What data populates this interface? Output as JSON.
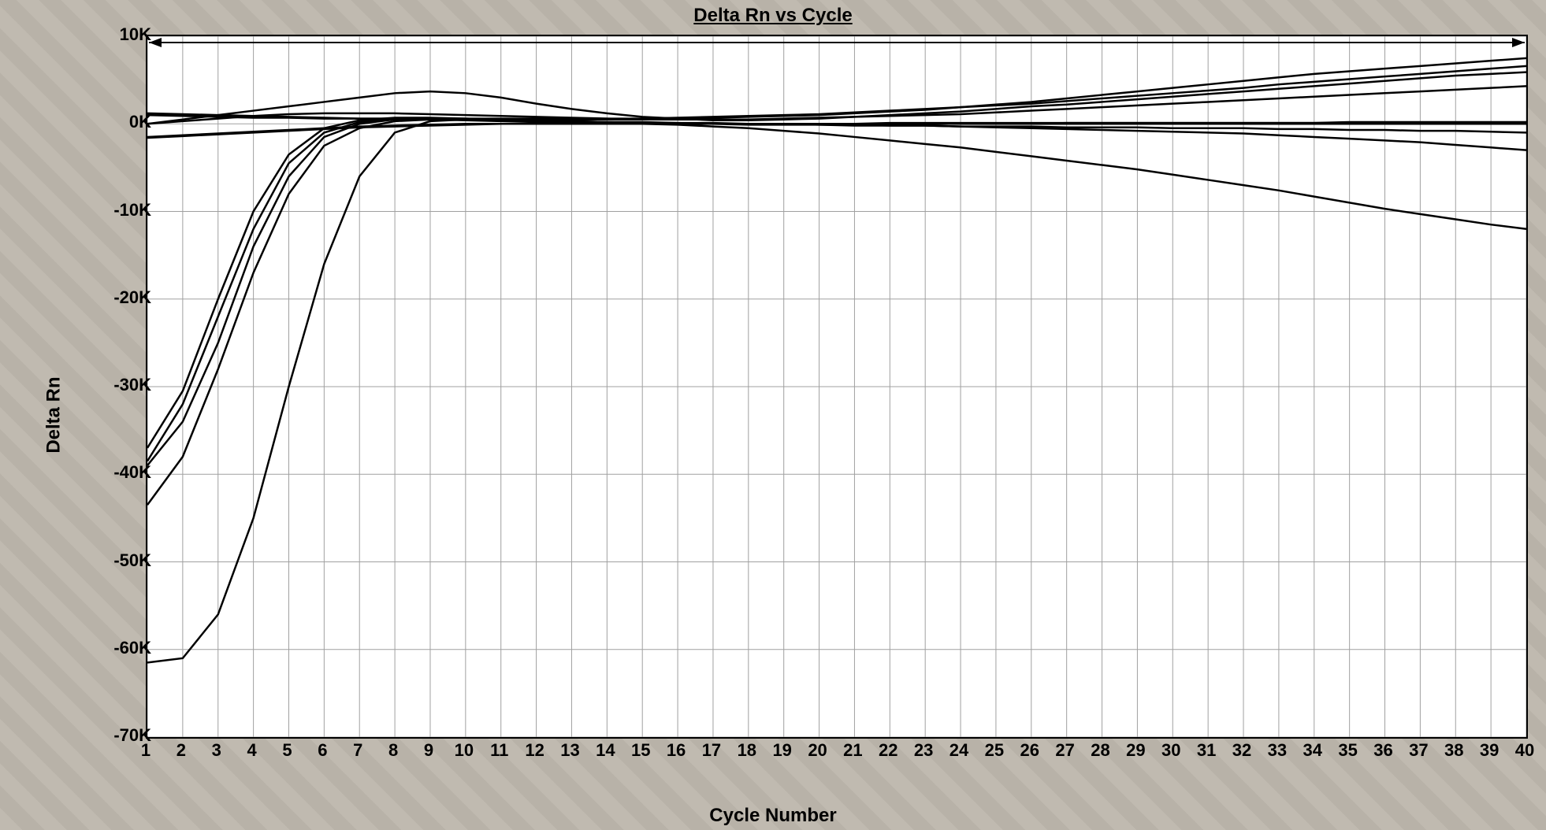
{
  "chart": {
    "type": "line",
    "title": "Delta Rn vs Cycle",
    "xlabel": "Cycle Number",
    "ylabel": "Delta Rn",
    "title_fontsize": 24,
    "label_fontsize": 24,
    "tick_fontsize": 22,
    "background_color": "#ffffff",
    "outer_background": "#b8b0a8",
    "grid_color": "#a0a0a0",
    "border_color": "#000000",
    "line_color": "#000000",
    "line_width": 2.5,
    "xlim": [
      1,
      40
    ],
    "ylim": [
      -70,
      10
    ],
    "xtick_step": 1,
    "ytick_step": 10,
    "ytick_suffix": "K",
    "xticks": [
      1,
      2,
      3,
      4,
      5,
      6,
      7,
      8,
      9,
      10,
      11,
      12,
      13,
      14,
      15,
      16,
      17,
      18,
      19,
      20,
      21,
      22,
      23,
      24,
      25,
      26,
      27,
      28,
      29,
      30,
      31,
      32,
      33,
      34,
      35,
      36,
      37,
      38,
      39,
      40
    ],
    "yticks": [
      10,
      0,
      -10,
      -20,
      -30,
      -40,
      -50,
      -60,
      -70
    ],
    "series": [
      {
        "name": "s1",
        "values": [
          1.2,
          1.1,
          1.0,
          0.9,
          0.8,
          0.7,
          0.6,
          0.6,
          0.5,
          0.5,
          0.5,
          0.5,
          0.5,
          0.5,
          0.5,
          0.6,
          0.7,
          0.8,
          0.9,
          1.0,
          1.2,
          1.4,
          1.6,
          1.9,
          2.2,
          2.5,
          2.9,
          3.3,
          3.7,
          4.1,
          4.5,
          4.9,
          5.3,
          5.7,
          6.0,
          6.3,
          6.6,
          6.9,
          7.2,
          7.5
        ]
      },
      {
        "name": "s2",
        "values": [
          1.0,
          0.9,
          0.8,
          0.7,
          0.7,
          0.6,
          0.6,
          0.6,
          0.6,
          0.6,
          0.6,
          0.6,
          0.6,
          0.6,
          0.6,
          0.7,
          0.8,
          0.9,
          1.0,
          1.1,
          1.3,
          1.5,
          1.7,
          1.9,
          2.1,
          2.3,
          2.6,
          2.9,
          3.2,
          3.5,
          3.8,
          4.1,
          4.5,
          4.8,
          5.1,
          5.4,
          5.7,
          6.0,
          6.3,
          6.6
        ]
      },
      {
        "name": "s3",
        "values": [
          0.0,
          0.5,
          1.0,
          1.5,
          2.0,
          2.5,
          3.0,
          3.5,
          3.7,
          3.5,
          3.0,
          2.3,
          1.7,
          1.2,
          0.8,
          0.6,
          0.4,
          0.4,
          0.5,
          0.6,
          0.8,
          1.0,
          1.2,
          1.4,
          1.7,
          2.0,
          2.2,
          2.5,
          2.8,
          3.1,
          3.4,
          3.7,
          4.0,
          4.3,
          4.6,
          4.9,
          5.2,
          5.5,
          5.7,
          5.9
        ]
      },
      {
        "name": "s4",
        "values": [
          0.0,
          0.3,
          0.6,
          0.9,
          1.1,
          1.2,
          1.2,
          1.2,
          1.1,
          1.0,
          0.9,
          0.8,
          0.7,
          0.6,
          0.5,
          0.5,
          0.5,
          0.5,
          0.6,
          0.7,
          0.8,
          0.9,
          1.0,
          1.1,
          1.3,
          1.5,
          1.7,
          1.9,
          2.1,
          2.3,
          2.5,
          2.7,
          2.9,
          3.1,
          3.3,
          3.5,
          3.7,
          3.9,
          4.1,
          4.3
        ]
      },
      {
        "name": "s5",
        "values": [
          -1.5,
          -1.3,
          -1.1,
          -0.9,
          -0.7,
          -0.5,
          -0.3,
          -0.2,
          -0.1,
          0.0,
          0.0,
          0.0,
          0.0,
          0.0,
          0.0,
          0.0,
          0.0,
          0.0,
          0.0,
          0.0,
          0.0,
          0.0,
          0.0,
          0.0,
          0.0,
          0.0,
          0.1,
          0.1,
          0.1,
          0.1,
          0.1,
          0.1,
          0.1,
          0.1,
          0.2,
          0.2,
          0.2,
          0.2,
          0.2,
          0.2
        ]
      },
      {
        "name": "s6",
        "values": [
          -1.6,
          -1.4,
          -1.2,
          -1.0,
          -0.8,
          -0.6,
          -0.4,
          -0.3,
          -0.2,
          -0.1,
          0.0,
          0.0,
          0.0,
          0.0,
          0.0,
          0.0,
          0.0,
          -0.1,
          -0.1,
          -0.1,
          -0.2,
          -0.2,
          -0.2,
          -0.3,
          -0.3,
          -0.3,
          -0.4,
          -0.4,
          -0.4,
          -0.5,
          -0.5,
          -0.5,
          -0.6,
          -0.6,
          -0.7,
          -0.7,
          -0.8,
          -0.8,
          -0.9,
          -1.0
        ]
      },
      {
        "name": "s7",
        "values": [
          -38.5,
          -32.0,
          -22.0,
          -12.0,
          -4.5,
          -1.0,
          0.2,
          0.6,
          0.6,
          0.6,
          0.5,
          0.4,
          0.3,
          0.2,
          0.2,
          0.1,
          0.1,
          0.0,
          0.0,
          -0.1,
          -0.1,
          -0.2,
          -0.2,
          -0.3,
          -0.4,
          -0.5,
          -0.6,
          -0.7,
          -0.8,
          -0.9,
          -1.0,
          -1.1,
          -1.3,
          -1.5,
          -1.7,
          -1.9,
          -2.1,
          -2.4,
          -2.7,
          -3.0
        ]
      },
      {
        "name": "s8",
        "values": [
          -37.0,
          -30.5,
          -20.0,
          -10.0,
          -3.5,
          -0.5,
          0.4,
          0.7,
          0.7,
          0.6,
          0.5,
          0.4,
          0.3,
          0.2,
          0.1,
          0.1,
          0.0,
          0.0,
          0.0,
          0.0,
          0.0,
          0.1,
          0.1,
          0.1,
          0.1,
          0.1,
          0.1,
          0.1,
          0.1,
          0.1,
          0.1,
          0.1,
          0.1,
          0.1,
          0.1,
          0.1,
          0.1,
          0.1,
          0.1,
          0.1
        ]
      },
      {
        "name": "s9",
        "values": [
          -39.0,
          -34.0,
          -25.0,
          -14.0,
          -6.0,
          -1.5,
          0.0,
          0.5,
          0.6,
          0.5,
          0.4,
          0.3,
          0.2,
          0.1,
          0.1,
          0.0,
          0.0,
          0.0,
          0.0,
          0.0,
          0.0,
          0.0,
          0.0,
          0.0,
          0.0,
          0.0,
          0.0,
          0.0,
          0.0,
          0.0,
          0.0,
          0.0,
          0.0,
          0.0,
          0.0,
          0.0,
          0.0,
          0.0,
          0.0,
          0.0
        ]
      },
      {
        "name": "s10",
        "values": [
          -43.5,
          -38.0,
          -28.0,
          -17.0,
          -8.0,
          -2.5,
          -0.5,
          0.3,
          0.5,
          0.4,
          0.3,
          0.2,
          0.1,
          0.1,
          0.0,
          0.0,
          0.0,
          0.0,
          0.0,
          0.0,
          0.0,
          0.0,
          0.0,
          0.0,
          0.0,
          0.0,
          0.0,
          0.0,
          0.0,
          0.0,
          0.0,
          0.0,
          0.0,
          0.0,
          0.0,
          0.0,
          0.0,
          0.0,
          0.0,
          0.0
        ]
      },
      {
        "name": "s11",
        "values": [
          -61.5,
          -61.0,
          -56.0,
          -45.0,
          -30.0,
          -16.0,
          -6.0,
          -1.0,
          0.3,
          0.5,
          0.4,
          0.3,
          0.2,
          0.1,
          0.0,
          -0.1,
          -0.3,
          -0.5,
          -0.8,
          -1.1,
          -1.5,
          -1.9,
          -2.3,
          -2.7,
          -3.2,
          -3.7,
          -4.2,
          -4.7,
          -5.2,
          -5.8,
          -6.4,
          -7.0,
          -7.6,
          -8.3,
          -9.0,
          -9.7,
          -10.3,
          -10.9,
          -11.5,
          -12.0
        ]
      }
    ]
  }
}
